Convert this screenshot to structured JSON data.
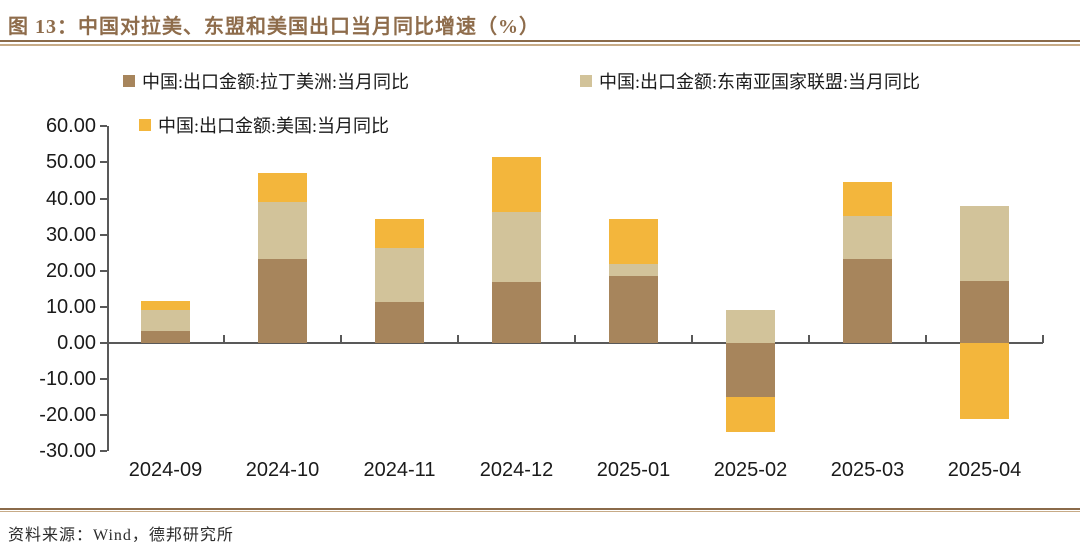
{
  "title": "图 13：中国对拉美、东盟和美国出口当月同比增速（%）",
  "source": "资料来源：Wind，德邦研究所",
  "colors": {
    "title_brown": "#8e6c4b",
    "rule_dark": "#8a6a4a",
    "rule_light": "#c7ab87",
    "axis": "#595959",
    "latam_brown": "#a7855c",
    "asean_tan": "#d2c39a",
    "us_orange": "#f3b63c"
  },
  "chart_data": {
    "type": "bar",
    "stacked": true,
    "title": "中国对拉美、东盟和美国出口当月同比增速（%）",
    "categories": [
      "2024-09",
      "2024-10",
      "2024-11",
      "2024-12",
      "2025-01",
      "2025-02",
      "2025-03",
      "2025-04"
    ],
    "series": [
      {
        "name": "中国:出口金额:拉丁美洲:当月同比",
        "color": "#a7855c",
        "values": [
          3.2,
          23.3,
          11.3,
          16.8,
          18.6,
          -14.9,
          23.3,
          17.2
        ]
      },
      {
        "name": "中国:出口金额:东南亚国家联盟:当月同比",
        "color": "#d2c39a",
        "values": [
          5.8,
          15.8,
          14.9,
          19.5,
          3.3,
          9.2,
          11.9,
          20.8
        ]
      },
      {
        "name": "中国:出口金额:美国:当月同比",
        "color": "#f3b63c",
        "values": [
          2.6,
          8.0,
          8.1,
          15.2,
          12.4,
          -9.7,
          9.4,
          -21.0
        ]
      }
    ],
    "ylim": [
      -30,
      60
    ],
    "ytick_step": 10,
    "ytick_labels": [
      "60.00",
      "50.00",
      "40.00",
      "30.00",
      "20.00",
      "10.00",
      "0.00",
      "-10.00",
      "-20.00",
      "-30.00"
    ],
    "grid": false,
    "legend_position": "top"
  }
}
